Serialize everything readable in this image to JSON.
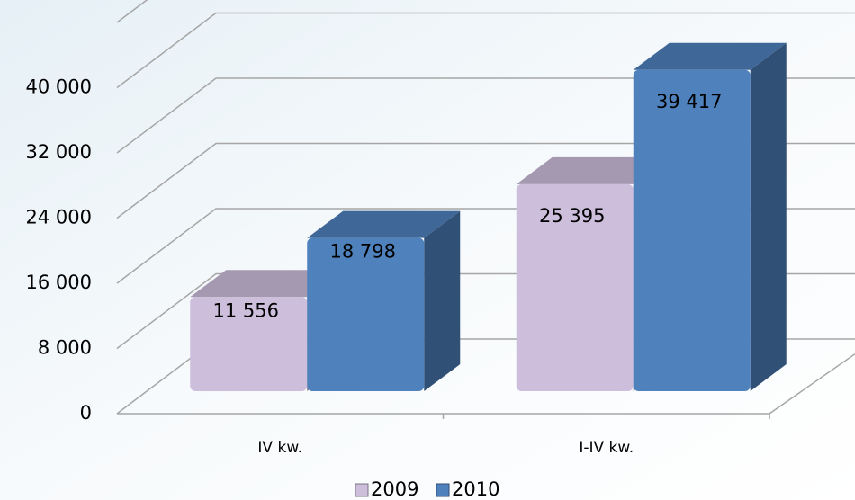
{
  "chart_data": {
    "type": "bar3d",
    "categories": [
      "IV kw.",
      "I-IV kw."
    ],
    "series": [
      {
        "name": "2009",
        "color": "#cdbfdc",
        "values": [
          11556,
          25395
        ],
        "value_labels": [
          "11 556",
          "25 395"
        ]
      },
      {
        "name": "2010",
        "color": "#4f81bd",
        "values": [
          18798,
          39417
        ],
        "value_labels": [
          "18 798",
          "39 417"
        ]
      }
    ],
    "ylim": [
      0,
      48000
    ],
    "yticks": [
      0,
      {
        "value": 8000,
        "label": "8 000"
      },
      {
        "value": 16000,
        "label": "16 000"
      },
      {
        "value": 24000,
        "label": "24 000"
      },
      {
        "value": 32000,
        "label": "32 000"
      },
      {
        "value": 40000,
        "label": "40 000"
      }
    ],
    "grid": true,
    "legend": "bottom"
  }
}
